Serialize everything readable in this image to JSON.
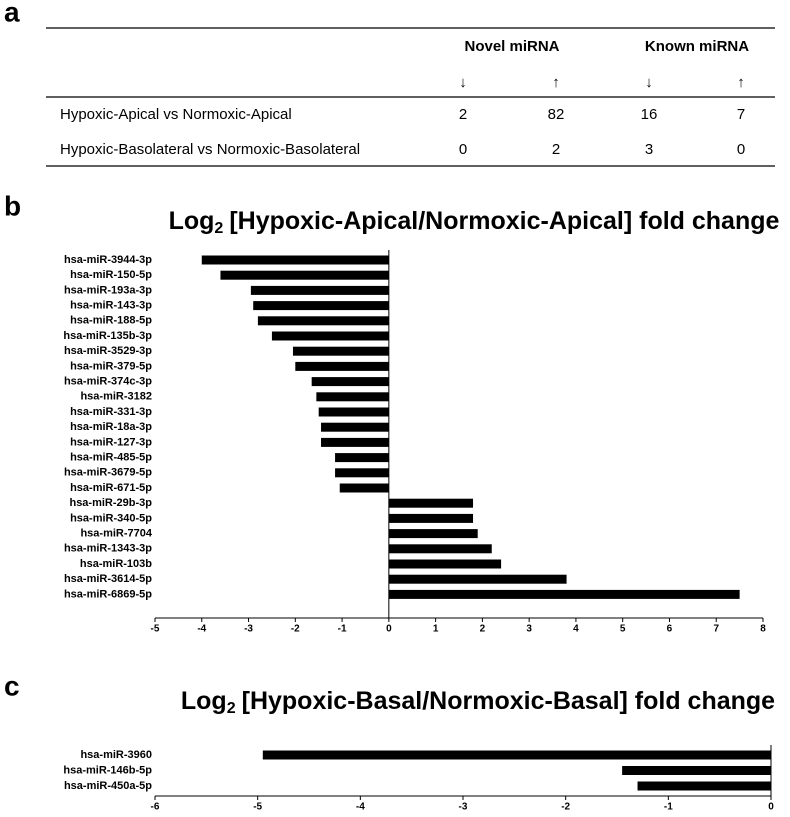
{
  "panel_labels": [
    "a",
    "b",
    "c"
  ],
  "table": {
    "headers": [
      "Novel miRNA",
      "Known miRNA"
    ],
    "subheaders": [
      "↓",
      "↑",
      "↓",
      "↑"
    ],
    "rows": [
      [
        "Hypoxic-Apical vs Normoxic-Apical",
        "2",
        "82",
        "16",
        "7"
      ],
      [
        "Hypoxic-Basolateral vs Normoxic-Basolateral",
        "0",
        "2",
        "3",
        "0"
      ]
    ]
  },
  "chart_data": [
    {
      "type": "hbar",
      "title": "Log",
      "title_subscript": "2",
      "title_rest": "[Hypoxic-Apical/Normoxic-Apical] fold change",
      "categories": [
        "hsa-miR-3944-3p",
        "hsa-miR-150-5p",
        "hsa-miR-193a-3p",
        "hsa-miR-143-3p",
        "hsa-miR-188-5p",
        "hsa-miR-135b-3p",
        "hsa-miR-3529-3p",
        "hsa-miR-379-5p",
        "hsa-miR-374c-3p",
        "hsa-miR-3182",
        "hsa-miR-331-3p",
        "hsa-miR-18a-3p",
        "hsa-miR-127-3p",
        "hsa-miR-485-5p",
        "hsa-miR-3679-5p",
        "hsa-miR-671-5p",
        "hsa-miR-29b-3p",
        "hsa-miR-340-5p",
        "hsa-miR-7704",
        "hsa-miR-1343-3p",
        "hsa-miR-103b",
        "hsa-miR-3614-5p",
        "hsa-miR-6869-5p"
      ],
      "values": [
        -4.0,
        -3.6,
        -2.95,
        -2.9,
        -2.8,
        -2.5,
        -2.05,
        -2.0,
        -1.65,
        -1.55,
        -1.5,
        -1.45,
        -1.45,
        -1.15,
        -1.15,
        -1.05,
        1.8,
        1.8,
        1.9,
        2.2,
        2.4,
        3.8,
        7.5
      ],
      "color": "#000000",
      "xlim": [
        -5,
        8
      ],
      "xticks": [
        -5,
        -4,
        -3,
        -2,
        -1,
        0,
        1,
        2,
        3,
        4,
        5,
        6,
        7,
        8
      ]
    },
    {
      "type": "hbar",
      "title": "Log",
      "title_subscript": "2",
      "title_rest": "[Hypoxic-Basal/Normoxic-Basal] fold change",
      "categories": [
        "hsa-miR-3960",
        "hsa-miR-146b-5p",
        "hsa-miR-450a-5p"
      ],
      "values": [
        -4.95,
        -1.45,
        -1.3
      ],
      "color": "#000000",
      "xlim": [
        -6,
        0
      ],
      "xticks": [
        -6,
        -5,
        -4,
        -3,
        -2,
        -1,
        0
      ]
    }
  ]
}
